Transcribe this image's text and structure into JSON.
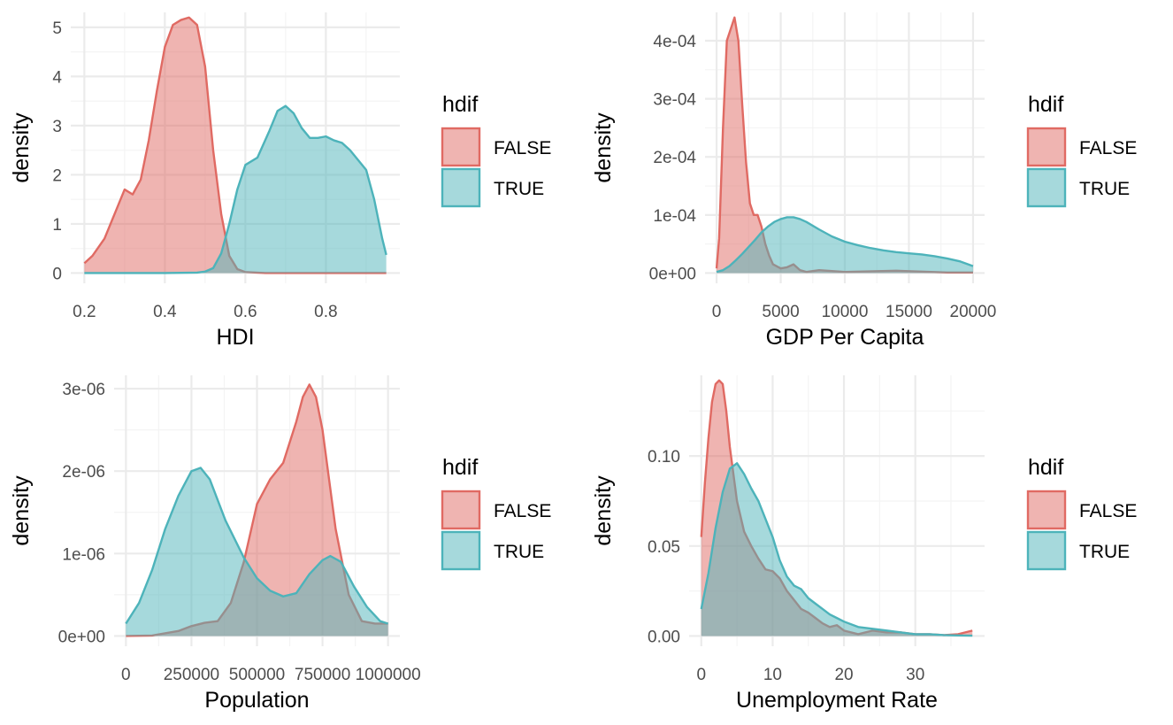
{
  "colors": {
    "false": "#E06A63",
    "true": "#4DB3BA",
    "grid_major": "#EBEBEB",
    "grid_minor": "#F4F4F4"
  },
  "legend": {
    "title": "hdif",
    "labels": [
      "FALSE",
      "TRUE"
    ]
  },
  "chart_data": [
    {
      "type": "area",
      "xlabel": "HDI",
      "ylabel": "density",
      "xlim": [
        0.2,
        0.95
      ],
      "ylim": [
        0,
        5.2
      ],
      "xticks": [
        0.2,
        0.4,
        0.6,
        0.8
      ],
      "xtick_labels": [
        "0.2",
        "0.4",
        "0.6",
        "0.8"
      ],
      "yticks": [
        0,
        1,
        2,
        3,
        4,
        5
      ],
      "ytick_labels": [
        "0",
        "1",
        "2",
        "3",
        "4",
        "5"
      ],
      "series": [
        {
          "name": "FALSE",
          "x": [
            0.2,
            0.22,
            0.25,
            0.28,
            0.3,
            0.32,
            0.34,
            0.36,
            0.38,
            0.4,
            0.42,
            0.44,
            0.46,
            0.48,
            0.5,
            0.52,
            0.54,
            0.56,
            0.58,
            0.6,
            0.65,
            0.7,
            0.8,
            0.9,
            0.95
          ],
          "values": [
            0.2,
            0.35,
            0.7,
            1.3,
            1.7,
            1.6,
            1.9,
            2.7,
            3.7,
            4.6,
            5.05,
            5.15,
            5.2,
            5.05,
            4.2,
            2.5,
            1.2,
            0.35,
            0.08,
            0.02,
            0,
            0,
            0,
            0,
            0
          ]
        },
        {
          "name": "TRUE",
          "x": [
            0.2,
            0.4,
            0.48,
            0.5,
            0.52,
            0.54,
            0.56,
            0.58,
            0.6,
            0.63,
            0.66,
            0.68,
            0.7,
            0.72,
            0.74,
            0.76,
            0.78,
            0.8,
            0.82,
            0.84,
            0.86,
            0.88,
            0.9,
            0.92,
            0.94,
            0.95
          ],
          "values": [
            0,
            0,
            0.01,
            0.03,
            0.1,
            0.4,
            1.0,
            1.7,
            2.2,
            2.35,
            2.9,
            3.3,
            3.4,
            3.25,
            2.95,
            2.75,
            2.75,
            2.78,
            2.7,
            2.65,
            2.5,
            2.3,
            2.1,
            1.5,
            0.7,
            0.37
          ]
        }
      ]
    },
    {
      "type": "area",
      "xlabel": "GDP Per Capita",
      "ylabel": "density",
      "xlim": [
        0,
        20000
      ],
      "ylim": [
        0,
        0.00044
      ],
      "xticks": [
        0,
        5000,
        10000,
        15000,
        20000
      ],
      "xtick_labels": [
        "0",
        "5000",
        "10000",
        "15000",
        "20000"
      ],
      "yticks": [
        0,
        0.0001,
        0.0002,
        0.0003,
        0.0004
      ],
      "ytick_labels": [
        "0e+00",
        "1e-04",
        "2e-04",
        "3e-04",
        "4e-04"
      ],
      "series": [
        {
          "name": "FALSE",
          "x": [
            0,
            200,
            500,
            800,
            1100,
            1400,
            1700,
            2000,
            2300,
            2600,
            2900,
            3200,
            3500,
            3800,
            4100,
            4400,
            5000,
            5500,
            6000,
            6500,
            7000,
            8000,
            10000,
            14000,
            18000,
            20000
          ],
          "values": [
            8e-06,
            6e-05,
            0.00025,
            0.0004,
            0.00042,
            0.00044,
            0.0004,
            0.00029,
            0.00019,
            0.00012,
            0.0001,
            0.0001,
            8e-05,
            5e-05,
            3e-05,
            1.5e-05,
            8e-06,
            1e-05,
            1.5e-05,
            5e-06,
            2e-06,
            5e-06,
            2e-06,
            4e-06,
            1e-06,
            1e-06
          ]
        },
        {
          "name": "TRUE",
          "x": [
            0,
            500,
            1000,
            1500,
            2000,
            2500,
            3000,
            3500,
            4000,
            4500,
            5000,
            5500,
            6000,
            6500,
            7000,
            8000,
            9000,
            10000,
            11000,
            12000,
            13000,
            14000,
            15000,
            16000,
            17000,
            18000,
            19000,
            20000
          ],
          "values": [
            2e-06,
            5e-06,
            1.2e-05,
            2.2e-05,
            3.3e-05,
            4.5e-05,
            5.7e-05,
            7e-05,
            8e-05,
            8.8e-05,
            9.3e-05,
            9.6e-05,
            9.6e-05,
            9.3e-05,
            8.8e-05,
            7.5e-05,
            6.3e-05,
            5.4e-05,
            4.8e-05,
            4.3e-05,
            3.9e-05,
            3.6e-05,
            3.4e-05,
            3.2e-05,
            2.9e-05,
            2.5e-05,
            2e-05,
            1.2e-05
          ]
        }
      ]
    },
    {
      "type": "area",
      "xlabel": "Population",
      "ylabel": "density",
      "xlim": [
        0,
        1000000
      ],
      "ylim": [
        0,
        3.1e-06
      ],
      "xticks": [
        0,
        250000,
        500000,
        750000,
        1000000
      ],
      "xtick_labels": [
        "0",
        "250000",
        "500000",
        "750000",
        "1000000"
      ],
      "yticks": [
        0,
        1e-06,
        2e-06,
        3e-06
      ],
      "ytick_labels": [
        "0e+00",
        "1e-06",
        "2e-06",
        "3e-06"
      ],
      "series": [
        {
          "name": "FALSE",
          "x": [
            0,
            100000,
            200000,
            250000,
            300000,
            350000,
            400000,
            450000,
            500000,
            550000,
            600000,
            650000,
            675000,
            700000,
            725000,
            750000,
            775000,
            800000,
            850000,
            900000,
            950000,
            1000000
          ],
          "values": [
            0,
            5e-09,
            6e-08,
            1.2e-07,
            1.6e-07,
            1.8e-07,
            4e-07,
            9e-07,
            1.6e-06,
            1.9e-06,
            2.1e-06,
            2.6e-06,
            2.9e-06,
            3.05e-06,
            2.9e-06,
            2.5e-06,
            1.9e-06,
            1.3e-06,
            5e-07,
            1.8e-07,
            1.5e-07,
            1.5e-07
          ]
        },
        {
          "name": "TRUE",
          "x": [
            0,
            50000,
            100000,
            150000,
            200000,
            250000,
            285000,
            320000,
            380000,
            450000,
            500000,
            550000,
            600000,
            650000,
            700000,
            750000,
            780000,
            820000,
            870000,
            920000,
            970000,
            1000000
          ],
          "values": [
            1.5e-07,
            4e-07,
            8e-07,
            1.3e-06,
            1.7e-06,
            2e-06,
            2.04e-06,
            1.9e-06,
            1.4e-06,
            9.5e-07,
            7e-07,
            5.5e-07,
            4.8e-07,
            5.2e-07,
            7.5e-07,
            9.2e-07,
            9.7e-07,
            9e-07,
            6e-07,
            3.5e-07,
            1.8e-07,
            1.5e-07
          ]
        }
      ]
    },
    {
      "type": "area",
      "xlabel": "Unemployment Rate",
      "ylabel": "density",
      "xlim": [
        0,
        38
      ],
      "ylim": [
        0,
        0.142
      ],
      "xticks": [
        0,
        10,
        20,
        30
      ],
      "xtick_labels": [
        "0",
        "10",
        "20",
        "30"
      ],
      "yticks": [
        0,
        0.05,
        0.1
      ],
      "ytick_labels": [
        "0.00",
        "0.05",
        "0.10"
      ],
      "series": [
        {
          "name": "FALSE",
          "x": [
            0,
            0.5,
            1,
            1.5,
            2,
            2.5,
            3,
            3.5,
            4,
            5,
            6,
            7,
            8,
            9,
            10,
            11,
            12,
            13,
            14,
            15,
            16,
            17,
            18,
            19,
            20,
            22,
            24,
            26,
            28,
            30,
            32,
            34,
            36,
            37,
            38
          ],
          "values": [
            0.055,
            0.085,
            0.11,
            0.13,
            0.14,
            0.142,
            0.14,
            0.125,
            0.105,
            0.075,
            0.058,
            0.05,
            0.043,
            0.037,
            0.036,
            0.032,
            0.025,
            0.02,
            0.015,
            0.013,
            0.01,
            0.007,
            0.005,
            0.006,
            0.003,
            0.001,
            0.003,
            0.002,
            0.002,
            0.001,
            0.001,
            0.0005,
            0.001,
            0.002,
            0.003
          ]
        },
        {
          "name": "TRUE",
          "x": [
            0,
            1,
            2,
            3,
            4,
            5,
            6,
            7,
            8,
            9,
            10,
            11,
            12,
            13,
            14,
            15,
            16,
            17,
            18,
            19,
            20,
            22,
            24,
            26,
            28,
            30,
            32,
            34,
            36,
            38
          ],
          "values": [
            0.015,
            0.035,
            0.06,
            0.08,
            0.093,
            0.096,
            0.09,
            0.082,
            0.075,
            0.065,
            0.055,
            0.042,
            0.033,
            0.028,
            0.026,
            0.021,
            0.018,
            0.015,
            0.012,
            0.01,
            0.008,
            0.005,
            0.004,
            0.003,
            0.002,
            0.001,
            0.001,
            0.0005,
            0.0003,
            0.0002
          ]
        }
      ]
    }
  ]
}
